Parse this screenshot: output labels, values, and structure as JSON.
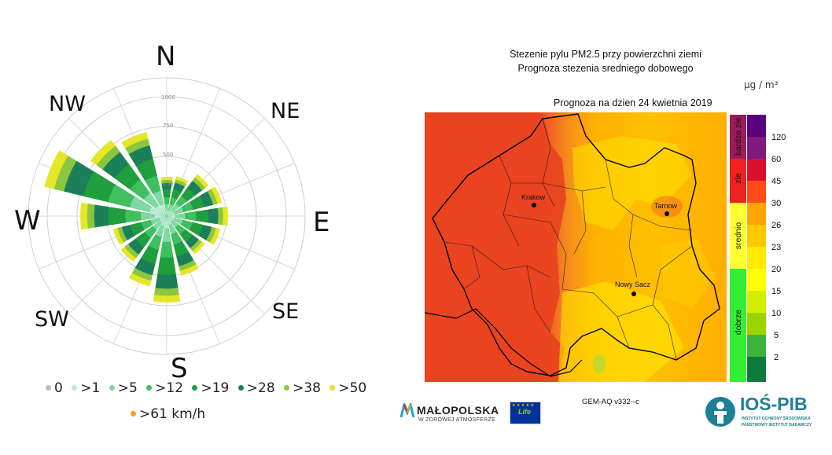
{
  "windrose": {
    "directions": {
      "n": "N",
      "ne": "NE",
      "e": "E",
      "se": "SE",
      "s": "S",
      "sw": "SW",
      "w": "W",
      "nw": "NW"
    },
    "radial_ticks": [
      "1000",
      "750",
      "500",
      "250"
    ],
    "legend": [
      {
        "label": "0",
        "color": "#bdbdbd"
      },
      {
        "label": ">1",
        "color": "#b7ecd4"
      },
      {
        "label": ">5",
        "color": "#7fd9a2"
      },
      {
        "label": ">12",
        "color": "#3fbf5f"
      },
      {
        "label": ">19",
        "color": "#1e9e3c"
      },
      {
        "label": ">28",
        "color": "#1b7f5a"
      },
      {
        "label": ">38",
        "color": "#8cc63f"
      },
      {
        "label": ">50",
        "color": "#e6e629"
      },
      {
        "label": ">61 km/h",
        "color": "#f0a033"
      }
    ]
  },
  "map": {
    "title_line1": "Stezenie pylu PM2.5 przy powierzchni ziemi",
    "title_line2": "Prognoza stezenia sredniego dobowego",
    "unit": "µg / m³",
    "forecast_label": "Prognoza na dzien  24 kwietnia 2019",
    "model_label": "GEM-AQ v332--c",
    "cities": [
      {
        "name": "Krakow"
      },
      {
        "name": "Tarnow"
      },
      {
        "name": "Nowy Sacz"
      }
    ]
  },
  "colorbar": {
    "categories": [
      "bardzo zle",
      "zle",
      "srednio",
      "dobrze"
    ],
    "ticks": [
      "120",
      "60",
      "45",
      "30",
      "26",
      "23",
      "20",
      "15",
      "10",
      "5",
      "2"
    ],
    "colors": [
      "#5a0080",
      "#7d1a7d",
      "#cc0033",
      "#e62020",
      "#ff5500",
      "#ffa500",
      "#ffc800",
      "#ffe600",
      "#ffff00",
      "#d4ee00",
      "#9cd400",
      "#3cb43c",
      "#1a9a3a",
      "#0f7a40"
    ],
    "category_colors": [
      "#9a1a5a",
      "#ee2020",
      "#ffff33",
      "#33ee33"
    ]
  },
  "logos": {
    "malopolska": "MAŁOPOLSKA",
    "malopolska_sub": "W ZDROWEJ ATMOSFERZE",
    "life": "Life",
    "ios": "IOŚ-PIB",
    "ios_sub1": "INSTYTUT OCHRONY ŚRODOWISKA",
    "ios_sub2": "PAŃSTWOWY INSTYTUT BADAWCZY"
  }
}
